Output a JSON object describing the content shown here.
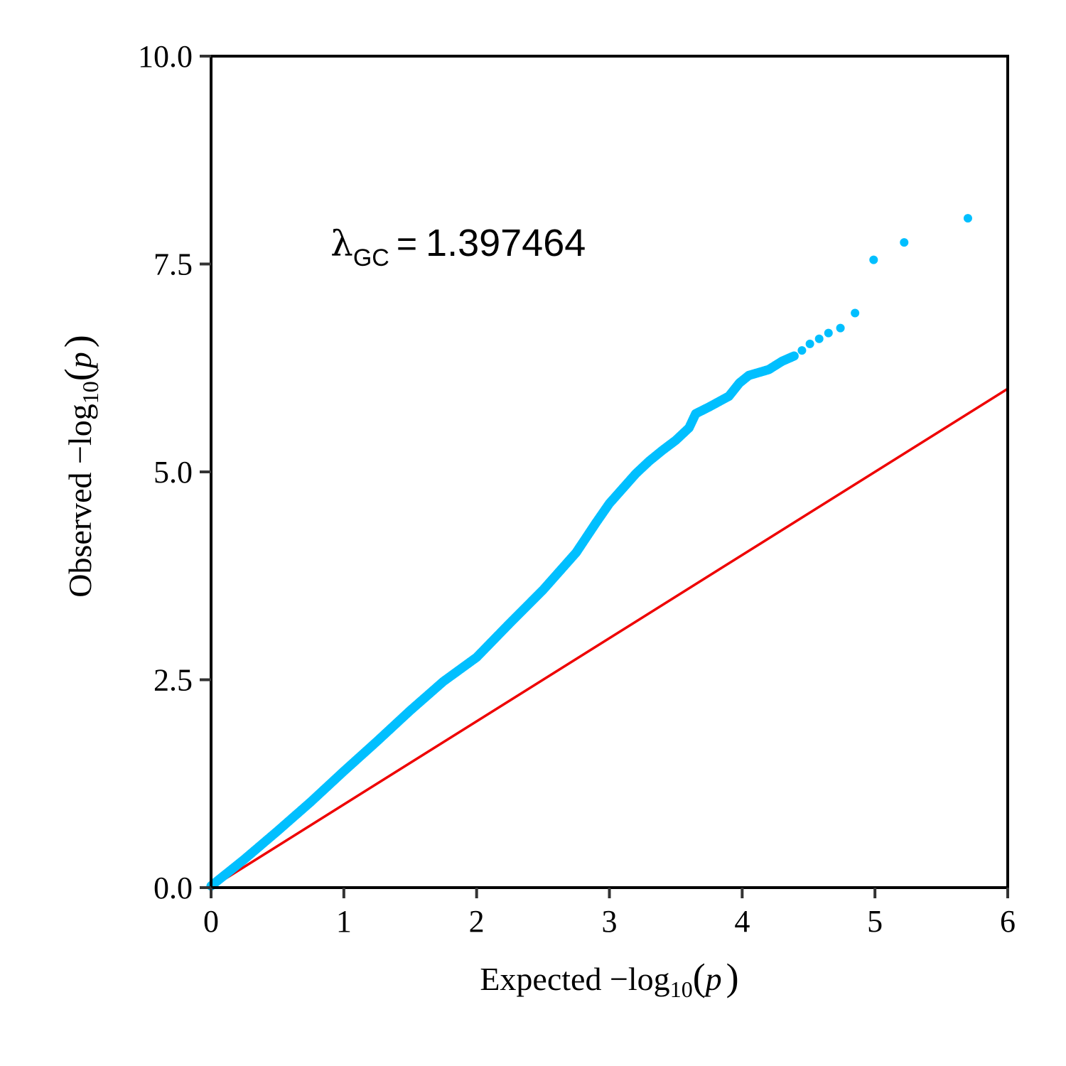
{
  "chart_data": {
    "type": "scatter",
    "title": "",
    "xlabel": "Expected  −log10(p)",
    "ylabel": "Observed  −log10(p)",
    "xlabel_parts": {
      "prefix": "Expected  −log",
      "sub": "10",
      "open": "(",
      "var": "p",
      "close": ")"
    },
    "ylabel_parts": {
      "prefix": "Observed  −log",
      "sub": "10",
      "open": "(",
      "var": "p",
      "close": ")"
    },
    "xlim": [
      0,
      6
    ],
    "ylim": [
      0,
      10
    ],
    "x_ticks": [
      0,
      1,
      2,
      3,
      4,
      5,
      6
    ],
    "x_tick_labels": [
      "0",
      "1",
      "2",
      "3",
      "4",
      "5",
      "6"
    ],
    "y_ticks": [
      0,
      2.5,
      5,
      7.5,
      10
    ],
    "y_tick_labels": [
      "0.0",
      "2.5",
      "5.0",
      "7.5",
      "10.0"
    ],
    "grid": false,
    "annotation": {
      "symbol": "λ",
      "subscript": "GC",
      "equals": "=",
      "value": "1.397464",
      "x": 0.9,
      "y": 7.6
    },
    "series": [
      {
        "name": "observed",
        "color": "#00bfff",
        "kind": "points",
        "curve": [
          [
            0,
            0.02
          ],
          [
            0.25,
            0.34
          ],
          [
            0.5,
            0.68
          ],
          [
            0.75,
            1.03
          ],
          [
            1.0,
            1.4
          ],
          [
            1.25,
            1.76
          ],
          [
            1.5,
            2.13
          ],
          [
            1.75,
            2.48
          ],
          [
            2.0,
            2.77
          ],
          [
            2.25,
            3.18
          ],
          [
            2.5,
            3.58
          ],
          [
            2.75,
            4.03
          ],
          [
            2.9,
            4.39
          ],
          [
            3.0,
            4.62
          ],
          [
            3.1,
            4.8
          ],
          [
            3.2,
            4.98
          ],
          [
            3.3,
            5.13
          ],
          [
            3.4,
            5.26
          ],
          [
            3.5,
            5.38
          ],
          [
            3.6,
            5.53
          ],
          [
            3.65,
            5.7
          ],
          [
            3.75,
            5.78
          ],
          [
            3.9,
            5.91
          ],
          [
            3.98,
            6.07
          ],
          [
            4.05,
            6.16
          ],
          [
            4.2,
            6.23
          ],
          [
            4.3,
            6.33
          ],
          [
            4.4,
            6.4
          ]
        ],
        "points": [
          [
            4.45,
            6.46
          ],
          [
            4.51,
            6.54
          ],
          [
            4.58,
            6.6
          ],
          [
            4.65,
            6.67
          ],
          [
            4.74,
            6.73
          ],
          [
            4.85,
            6.91
          ],
          [
            4.99,
            7.55
          ],
          [
            5.22,
            7.76
          ],
          [
            5.7,
            8.05
          ]
        ]
      },
      {
        "name": "expected (y = x)",
        "color": "#ee0000",
        "kind": "line",
        "x": [
          0,
          6
        ],
        "y": [
          0,
          6
        ]
      }
    ]
  }
}
